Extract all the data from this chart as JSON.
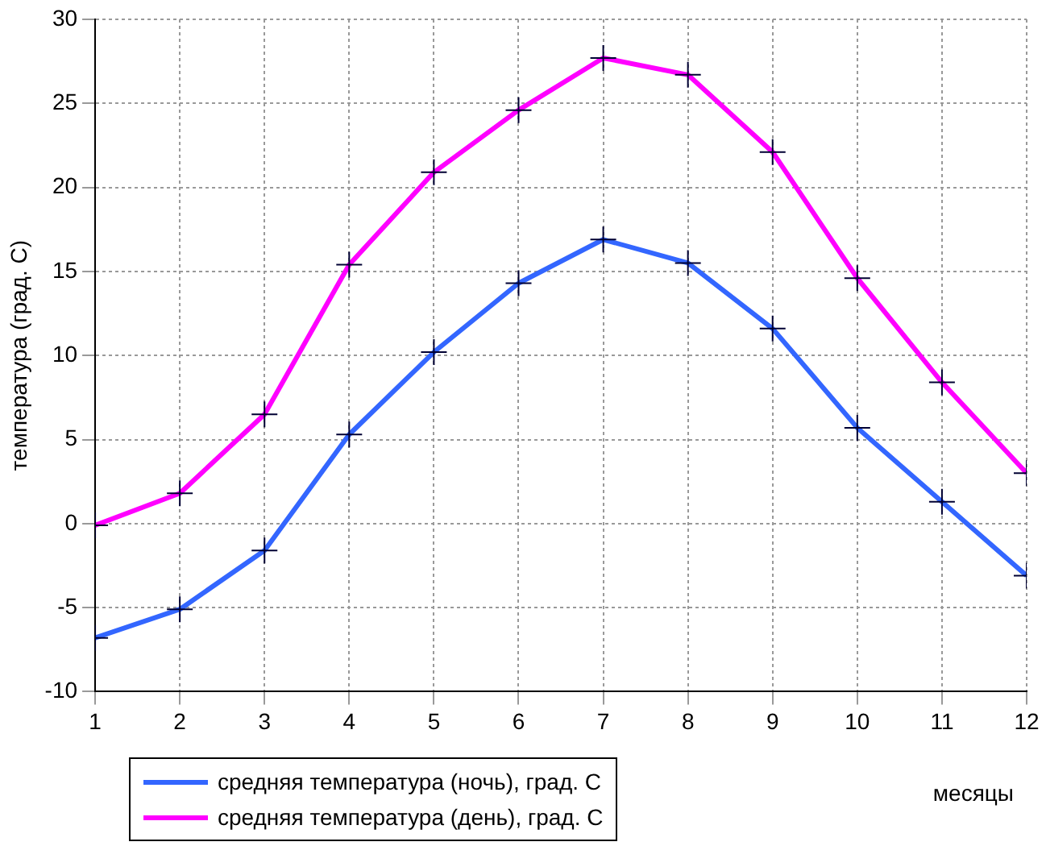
{
  "chart_data": {
    "type": "line",
    "ylabel": "температура (град. С)",
    "xlabel": "месяцы",
    "x": [
      1,
      2,
      3,
      4,
      5,
      6,
      7,
      8,
      9,
      10,
      11,
      12
    ],
    "series": [
      {
        "name": "средняя температура (ночь), град. С",
        "color": "#3366ff",
        "values": [
          -6.8,
          -5.1,
          -1.6,
          5.3,
          10.2,
          14.3,
          16.9,
          15.5,
          11.6,
          5.7,
          1.3,
          -3.1
        ]
      },
      {
        "name": "средняя температура (день), град. С",
        "color": "#ff00ff",
        "values": [
          -0.1,
          1.8,
          6.5,
          15.4,
          20.9,
          24.6,
          27.7,
          26.7,
          22.1,
          14.6,
          8.4,
          3.0
        ]
      }
    ],
    "xlim": [
      1,
      12
    ],
    "xticks": [
      1,
      2,
      3,
      4,
      5,
      6,
      7,
      8,
      9,
      10,
      11,
      12
    ],
    "ylim": [
      -10,
      30
    ],
    "yticks": [
      -10,
      -5,
      0,
      5,
      10,
      15,
      20,
      25,
      30
    ],
    "grid": true,
    "legend": "bottom left",
    "marker": "cross",
    "line_style": "solid"
  }
}
